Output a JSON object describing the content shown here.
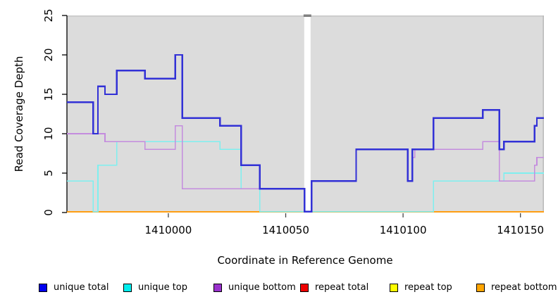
{
  "axes": {
    "y_title": "Read Coverage Depth",
    "x_title": "Coordinate in Reference Genome",
    "y_tick_labels": [
      "0",
      "5",
      "10",
      "15",
      "20",
      "25"
    ],
    "x_tick_labels": [
      "1410000",
      "1410050",
      "1410100",
      "1410150"
    ]
  },
  "legend": [
    {
      "label": "unique total",
      "color": "#0000EE"
    },
    {
      "label": "unique top",
      "color": "#00EEEE"
    },
    {
      "label": "unique bottom",
      "color": "#9A32CD"
    },
    {
      "label": "repeat total",
      "color": "#EE0000"
    },
    {
      "label": "repeat top",
      "color": "#FFFF00"
    },
    {
      "label": "repeat bottom",
      "color": "#FFA500"
    }
  ],
  "colors": {
    "panel_bg": "#DCDCDC",
    "panel_top_edge": "#C6C6C6",
    "panel_right_edge": "#B9B9B9",
    "masked_band": "#FFFFFF",
    "masked_band_cap": "#808080",
    "axis": "#000000",
    "tick": "#444444"
  },
  "chart_data": {
    "type": "line",
    "step": true,
    "title": "",
    "xlabel": "Coordinate in Reference Genome",
    "ylabel": "Read Coverage Depth",
    "x_range": [
      1409956.8,
      1410160
    ],
    "ylim": [
      0,
      25
    ],
    "y_ticks": [
      0,
      5,
      10,
      15,
      20,
      25
    ],
    "x_ticks": [
      1410000,
      1410050,
      1410100,
      1410150
    ],
    "grid": false,
    "legend_position": "bottom",
    "masked_region": {
      "start": 1410057.9,
      "end": 1410060.6
    },
    "series": [
      {
        "name": "repeat total",
        "line_color": "#EE0000",
        "width": 1.6,
        "points": [
          [
            1409956.8,
            0
          ],
          [
            1410160,
            0
          ]
        ]
      },
      {
        "name": "repeat top",
        "line_color": "#FFFF00",
        "width": 1.6,
        "points": [
          [
            1409956.8,
            0
          ],
          [
            1410160,
            0
          ]
        ]
      },
      {
        "name": "repeat bottom",
        "line_color": "#FF9E12",
        "width": 2,
        "points": [
          [
            1409956.8,
            0
          ],
          [
            1410160,
            0
          ]
        ]
      },
      {
        "name": "unique top",
        "line_color": "#7EEFEF",
        "width": 1.6,
        "points": [
          [
            1409956.8,
            4
          ],
          [
            1409968,
            0
          ],
          [
            1409970,
            6
          ],
          [
            1409978,
            9
          ],
          [
            1410022,
            8
          ],
          [
            1410031,
            3
          ],
          [
            1410039,
            0
          ],
          [
            1410113,
            4
          ],
          [
            1410143,
            5
          ],
          [
            1410160,
            5
          ]
        ]
      },
      {
        "name": "unique bottom",
        "line_color": "#C48CDE",
        "width": 1.6,
        "points": [
          [
            1409956.8,
            10
          ],
          [
            1409973,
            9
          ],
          [
            1409990,
            8
          ],
          [
            1410003,
            11
          ],
          [
            1410006,
            3
          ],
          [
            1410058,
            0
          ],
          [
            1410061,
            4
          ],
          [
            1410080,
            8
          ],
          [
            1410102,
            4
          ],
          [
            1410104,
            7
          ],
          [
            1410105,
            8
          ],
          [
            1410134,
            9
          ],
          [
            1410141,
            4
          ],
          [
            1410156,
            6
          ],
          [
            1410157,
            7
          ],
          [
            1410160,
            7
          ]
        ]
      },
      {
        "name": "unique total",
        "line_color": "#3231D6",
        "width": 2.4,
        "points": [
          [
            1409956.8,
            14
          ],
          [
            1409968,
            10
          ],
          [
            1409970,
            16
          ],
          [
            1409973,
            15
          ],
          [
            1409978,
            18
          ],
          [
            1409990,
            17
          ],
          [
            1410003,
            20
          ],
          [
            1410006,
            12
          ],
          [
            1410022,
            11
          ],
          [
            1410031,
            6
          ],
          [
            1410039,
            3
          ],
          [
            1410058,
            0
          ],
          [
            1410061,
            4
          ],
          [
            1410080,
            8
          ],
          [
            1410102,
            4
          ],
          [
            1410104,
            8
          ],
          [
            1410113,
            12
          ],
          [
            1410134,
            13
          ],
          [
            1410141,
            8
          ],
          [
            1410143,
            9
          ],
          [
            1410156,
            11
          ],
          [
            1410157,
            12
          ],
          [
            1410160,
            12
          ]
        ]
      }
    ]
  }
}
